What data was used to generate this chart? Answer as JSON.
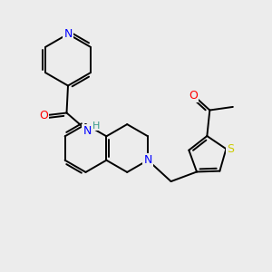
{
  "background_color": "#ececec",
  "atom_colors": {
    "N": "#0000ff",
    "O": "#ff0000",
    "S": "#cccc00",
    "C": "#000000",
    "H_teal": "#3a9a8a"
  },
  "figsize": [
    3.0,
    3.0
  ],
  "dpi": 100,
  "lw": 1.4
}
